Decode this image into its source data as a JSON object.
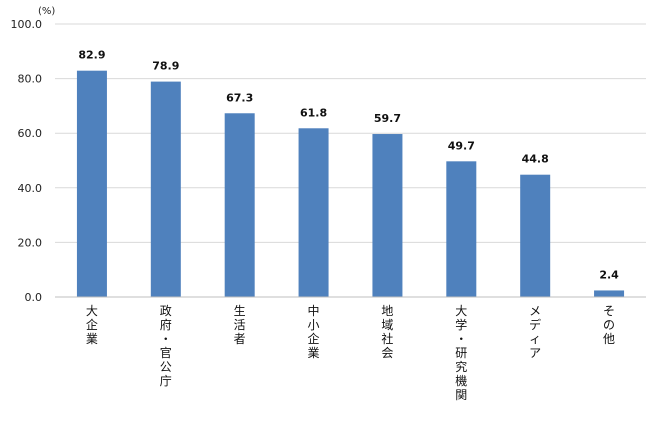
{
  "chart_data": {
    "type": "bar",
    "title": "",
    "xlabel": "",
    "ylabel": "",
    "unit_label": "(%)",
    "ylim": [
      0,
      100
    ],
    "y_ticks": [
      "0.0",
      "20.0",
      "40.0",
      "60.0",
      "80.0",
      "100.0"
    ],
    "y_tick_values": [
      0,
      20,
      40,
      60,
      80,
      100
    ],
    "grid": true,
    "legend": "none",
    "bar_color": "#4F81BD",
    "categories": [
      "大企業",
      "政府・官公庁",
      "生活者",
      "中小企業",
      "地域社会",
      "大学・研究機関",
      "メディア",
      "その他"
    ],
    "values": [
      82.9,
      78.9,
      67.3,
      61.8,
      59.7,
      49.7,
      44.8,
      2.4
    ],
    "value_labels": [
      "82.9",
      "78.9",
      "67.3",
      "61.8",
      "59.7",
      "49.7",
      "44.8",
      "2.4"
    ]
  }
}
